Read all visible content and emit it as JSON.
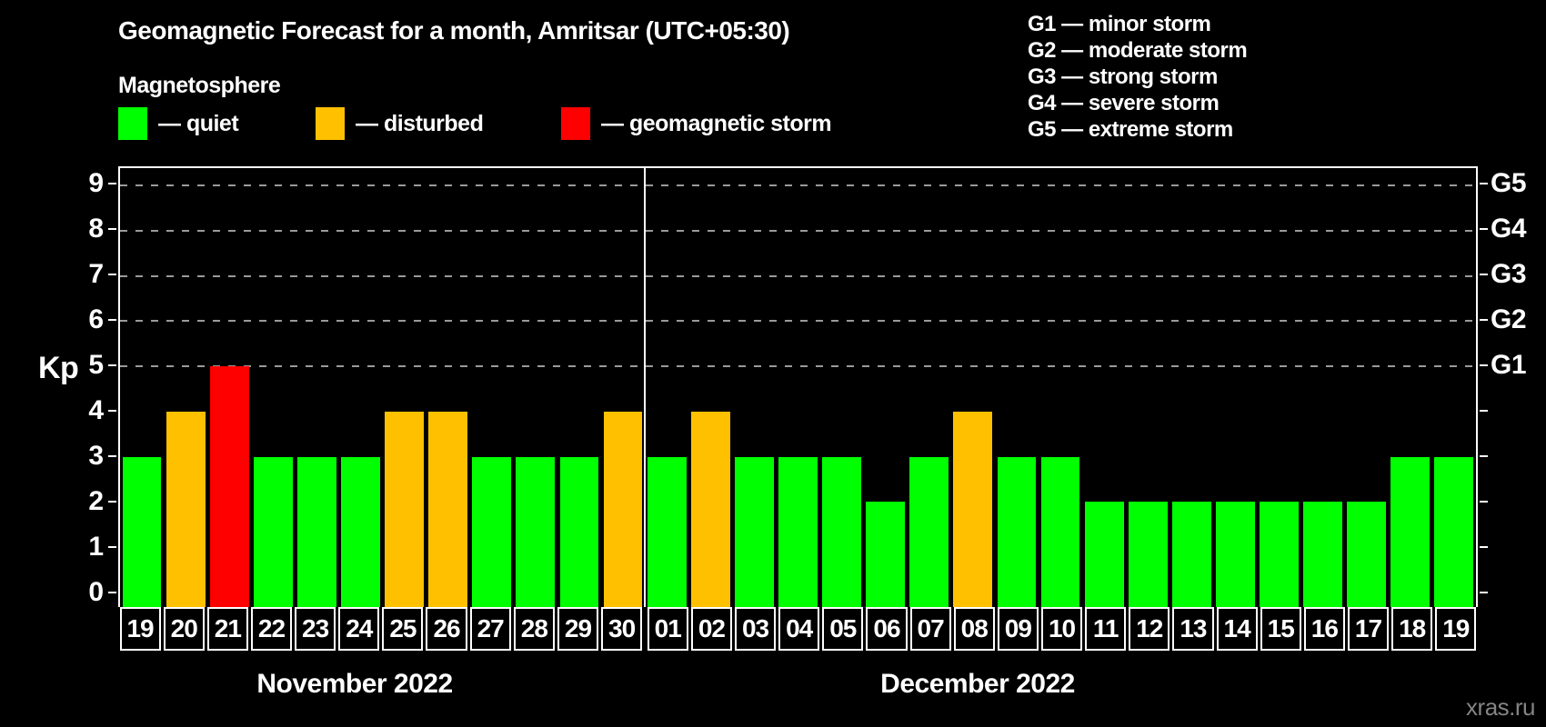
{
  "header": {
    "title": "Geomagnetic Forecast for a month, Amritsar (UTC+05:30)",
    "subtitle": "Magnetosphere",
    "legend": {
      "quiet_label": "— quiet",
      "disturbed_label": "— disturbed",
      "storm_label": "— geomagnetic storm"
    },
    "g_scale_legend": {
      "g1": "G1 — minor storm",
      "g2": "G2 — moderate storm",
      "g3": "G3 — strong storm",
      "g4": "G4 — severe storm",
      "g5": "G5 — extreme storm"
    }
  },
  "watermark": "xras.ru",
  "chart_data": {
    "type": "bar",
    "title": "Geomagnetic Forecast for a month, Amritsar (UTC+05:30)",
    "ylabel": "Kp",
    "ylim": [
      0,
      9
    ],
    "yticks": [
      0,
      1,
      2,
      3,
      4,
      5,
      6,
      7,
      8,
      9
    ],
    "gridlines_at": [
      5,
      6,
      7,
      8,
      9
    ],
    "grid": "dashed, only at G-storm levels",
    "legend_position": "top-left",
    "colors": {
      "quiet": "#00ff00",
      "disturbed": "#ffc000",
      "storm": "#ff0000"
    },
    "right_axis": [
      {
        "label": "G1",
        "kp": 5
      },
      {
        "label": "G2",
        "kp": 6
      },
      {
        "label": "G3",
        "kp": 7
      },
      {
        "label": "G4",
        "kp": 8
      },
      {
        "label": "G5",
        "kp": 9
      }
    ],
    "months": [
      {
        "label": "November 2022",
        "days": [
          {
            "date": "19",
            "kp": 3,
            "status": "quiet"
          },
          {
            "date": "20",
            "kp": 4,
            "status": "disturbed"
          },
          {
            "date": "21",
            "kp": 5,
            "status": "storm"
          },
          {
            "date": "22",
            "kp": 3,
            "status": "quiet"
          },
          {
            "date": "23",
            "kp": 3,
            "status": "quiet"
          },
          {
            "date": "24",
            "kp": 3,
            "status": "quiet"
          },
          {
            "date": "25",
            "kp": 4,
            "status": "disturbed"
          },
          {
            "date": "26",
            "kp": 4,
            "status": "disturbed"
          },
          {
            "date": "27",
            "kp": 3,
            "status": "quiet"
          },
          {
            "date": "28",
            "kp": 3,
            "status": "quiet"
          },
          {
            "date": "29",
            "kp": 3,
            "status": "quiet"
          },
          {
            "date": "30",
            "kp": 4,
            "status": "disturbed"
          }
        ]
      },
      {
        "label": "December 2022",
        "days": [
          {
            "date": "01",
            "kp": 3,
            "status": "quiet"
          },
          {
            "date": "02",
            "kp": 4,
            "status": "disturbed"
          },
          {
            "date": "03",
            "kp": 3,
            "status": "quiet"
          },
          {
            "date": "04",
            "kp": 3,
            "status": "quiet"
          },
          {
            "date": "05",
            "kp": 3,
            "status": "quiet"
          },
          {
            "date": "06",
            "kp": 2,
            "status": "quiet"
          },
          {
            "date": "07",
            "kp": 3,
            "status": "quiet"
          },
          {
            "date": "08",
            "kp": 4,
            "status": "disturbed"
          },
          {
            "date": "09",
            "kp": 3,
            "status": "quiet"
          },
          {
            "date": "10",
            "kp": 3,
            "status": "quiet"
          },
          {
            "date": "11",
            "kp": 2,
            "status": "quiet"
          },
          {
            "date": "12",
            "kp": 2,
            "status": "quiet"
          },
          {
            "date": "13",
            "kp": 2,
            "status": "quiet"
          },
          {
            "date": "14",
            "kp": 2,
            "status": "quiet"
          },
          {
            "date": "15",
            "kp": 2,
            "status": "quiet"
          },
          {
            "date": "16",
            "kp": 2,
            "status": "quiet"
          },
          {
            "date": "17",
            "kp": 2,
            "status": "quiet"
          },
          {
            "date": "18",
            "kp": 3,
            "status": "quiet"
          },
          {
            "date": "19",
            "kp": 3,
            "status": "quiet"
          }
        ]
      }
    ]
  }
}
